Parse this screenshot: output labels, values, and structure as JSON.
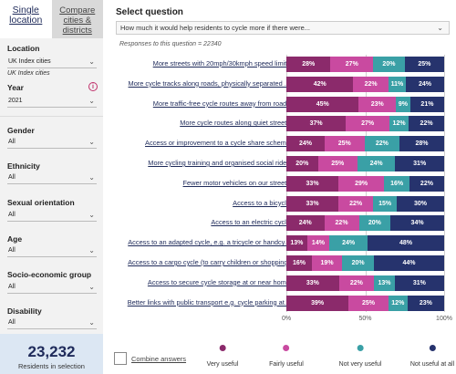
{
  "sidebar": {
    "tabs": [
      {
        "label": "Single location",
        "active": true
      },
      {
        "label": "Compare cities & districts",
        "active": false
      }
    ],
    "location": {
      "label": "Location",
      "value": "UK Index cities",
      "note": "UK Index cities"
    },
    "year": {
      "label": "Year",
      "value": "2021",
      "info_icon": "info-icon"
    },
    "filters": [
      {
        "label": "Gender",
        "value": "All"
      },
      {
        "label": "Ethnicity",
        "value": "All"
      },
      {
        "label": "Sexual orientation",
        "value": "All"
      },
      {
        "label": "Age",
        "value": "All"
      },
      {
        "label": "Socio-economic group",
        "value": "All"
      },
      {
        "label": "Disability",
        "value": "All"
      }
    ],
    "residents": {
      "count": "23,232",
      "caption": "Residents in selection"
    }
  },
  "main": {
    "title": "Select question",
    "question": "How much it would help residents to cycle more if there were...",
    "responses": "Responses to this question = 22340",
    "combine_label": "Combine answers"
  },
  "colors": {
    "very_useful": "#8b2a6b",
    "fairly_useful": "#c94aa0",
    "not_very_useful": "#3aa0a6",
    "not_useful_at_all": "#26336d"
  },
  "chart_data": {
    "type": "bar",
    "orientation": "horizontal",
    "stacked": true,
    "xlim": [
      0,
      100
    ],
    "x_ticks": [
      "0%",
      "50%",
      "100%"
    ],
    "categories": [
      "More streets with 20mph/30kmph speed limits",
      "More cycle tracks along roads, physically separated ...",
      "More traffic-free cycle routes away from roads",
      "More cycle routes along quiet streets",
      "Access or improvement to a cycle share scheme",
      "More cycling training and organised social rides",
      "Fewer motor vehicles on our streets",
      "Access to a bicycle",
      "Access to an electric cycle",
      "Access to an adapted cycle, e.g. a tricycle or handcy...",
      "Access to a cargo cycle (to carry children or shopping)",
      "Access to secure cycle storage at or near home",
      "Better links with public transport e.g. cycle parking at..."
    ],
    "series": [
      {
        "name": "Very useful",
        "values": [
          28,
          42,
          45,
          37,
          24,
          20,
          33,
          33,
          24,
          13,
          16,
          33,
          39
        ]
      },
      {
        "name": "Fairly useful",
        "values": [
          27,
          22,
          23,
          27,
          25,
          25,
          29,
          22,
          22,
          14,
          19,
          22,
          25
        ]
      },
      {
        "name": "Not very useful",
        "values": [
          20,
          11,
          9,
          12,
          22,
          24,
          16,
          15,
          20,
          24,
          20,
          13,
          12
        ]
      },
      {
        "name": "Not useful at all",
        "values": [
          25,
          24,
          21,
          22,
          28,
          31,
          22,
          30,
          34,
          48,
          44,
          31,
          23
        ]
      }
    ]
  }
}
